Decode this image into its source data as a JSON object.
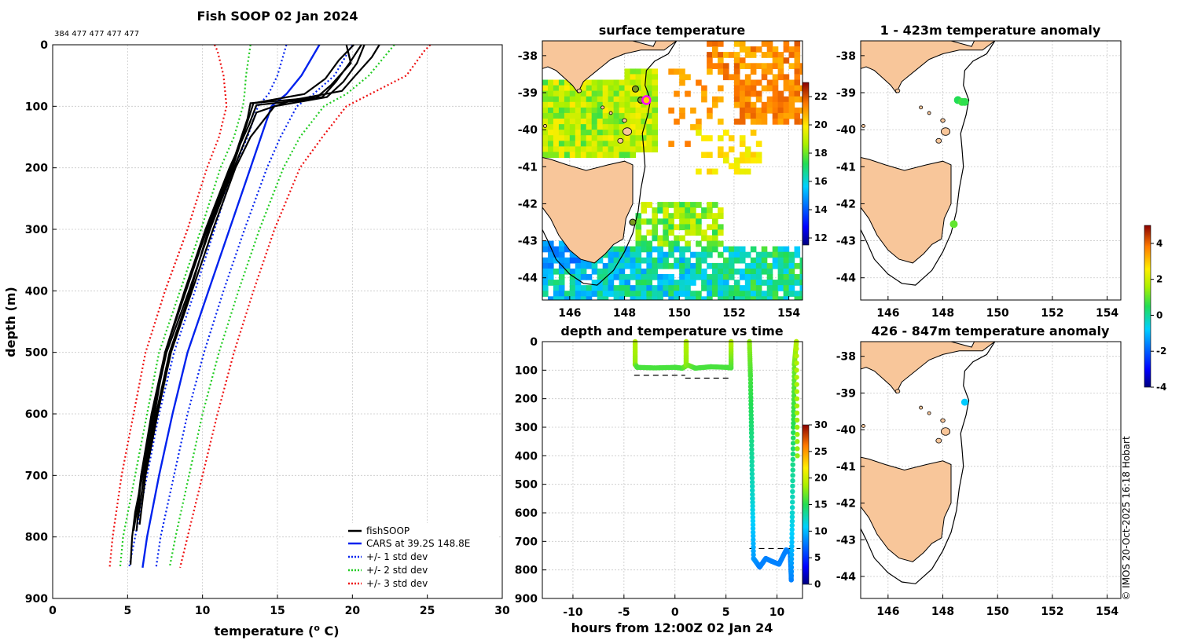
{
  "figure": {
    "main_title": "Fish SOOP 02 Jan 2024",
    "profile_counts": "384 477 477 477 477",
    "watermark": "© IMOS 20-Oct-2025 16:18 Hobart",
    "colors": {
      "land": "#f8c69a",
      "fishsoop": "#000000",
      "cars": "#0022ee",
      "sd1": "#0022ee",
      "sd2": "#22cc22",
      "sd3": "#ee1111"
    }
  },
  "chart_data": [
    {
      "id": "profile",
      "type": "line",
      "title": "Fish SOOP 02 Jan 2024",
      "xlabel": "temperature (° C)",
      "ylabel": "depth (m)",
      "xlim": [
        0,
        30
      ],
      "ylim": [
        900,
        0
      ],
      "xticks": [
        0,
        5,
        10,
        15,
        20,
        25,
        30
      ],
      "yticks": [
        0,
        100,
        200,
        300,
        400,
        500,
        600,
        700,
        800,
        900
      ],
      "grid": true,
      "legend_position": "bottom-right",
      "legend": [
        "fishSOOP",
        "CARS at 39.2S 148.8E",
        "+/- 1 std dev",
        "+/- 2 std dev",
        "+/- 3 std dev"
      ],
      "cars": {
        "depth": [
          0,
          50,
          80,
          100,
          150,
          200,
          300,
          400,
          500,
          600,
          700,
          800,
          850
        ],
        "temp": [
          17.8,
          16.6,
          15.6,
          14.6,
          13.9,
          13.2,
          11.8,
          10.4,
          9.0,
          8.0,
          7.1,
          6.3,
          6.0
        ]
      },
      "sd1": {
        "depth": [
          0,
          50,
          80,
          100,
          150,
          200,
          300,
          400,
          500,
          600,
          700,
          800,
          850
        ],
        "minus": [
          15.6,
          15.0,
          14.4,
          13.7,
          13.0,
          12.1,
          10.8,
          9.5,
          8.1,
          7.1,
          6.3,
          5.5,
          5.1
        ],
        "plus": [
          20.0,
          18.8,
          17.4,
          16.3,
          15.2,
          14.3,
          12.8,
          11.4,
          10.1,
          9.0,
          8.1,
          7.2,
          6.9
        ]
      },
      "sd2": {
        "depth": [
          0,
          50,
          80,
          100,
          150,
          200,
          300,
          400,
          500,
          600,
          700,
          800,
          850
        ],
        "minus": [
          13.2,
          12.9,
          12.8,
          12.7,
          12.1,
          11.2,
          9.9,
          8.5,
          7.1,
          6.3,
          5.5,
          4.7,
          4.5
        ],
        "plus": [
          22.8,
          21.1,
          19.6,
          18.1,
          16.5,
          15.4,
          13.8,
          12.4,
          11.1,
          10.0,
          9.1,
          8.2,
          7.8
        ]
      },
      "sd3": {
        "depth": [
          0,
          10,
          50,
          100,
          150,
          200,
          300,
          400,
          500,
          600,
          700,
          800,
          850
        ],
        "minus": [
          10.8,
          11.0,
          11.4,
          11.6,
          11.1,
          10.3,
          9.0,
          7.5,
          6.2,
          5.4,
          4.6,
          4.0,
          3.8
        ],
        "plus": [
          25.2,
          24.8,
          23.6,
          19.6,
          18.0,
          16.5,
          14.8,
          13.4,
          12.1,
          11.0,
          10.0,
          9.0,
          8.5
        ]
      },
      "fishsoop": [
        {
          "depth": [
            0,
            30,
            60,
            85,
            95,
            120,
            200,
            300,
            400,
            500,
            600,
            700,
            760,
            800,
            845
          ],
          "temp": [
            20.6,
            19.8,
            18.9,
            18.0,
            13.2,
            13.0,
            11.9,
            10.3,
            8.9,
            7.5,
            6.8,
            6.0,
            5.5,
            5.3,
            5.2
          ]
        },
        {
          "depth": [
            0,
            20,
            50,
            75,
            90,
            110,
            200,
            300,
            400,
            500,
            600,
            700,
            760,
            790
          ],
          "temp": [
            21.8,
            21.3,
            20.2,
            19.3,
            16.0,
            13.6,
            12.1,
            10.5,
            9.1,
            7.6,
            6.7,
            5.9,
            5.6,
            5.4
          ]
        },
        {
          "depth": [
            0,
            25,
            55,
            80,
            95,
            140,
            200,
            300,
            400,
            500,
            600,
            700,
            770
          ],
          "temp": [
            20.1,
            19.1,
            18.2,
            16.8,
            13.4,
            12.8,
            12.0,
            10.4,
            9.2,
            7.8,
            6.9,
            6.1,
            5.7
          ]
        },
        {
          "depth": [
            0,
            30,
            60,
            85,
            100,
            150,
            200,
            300,
            400,
            500,
            600,
            700,
            780
          ],
          "temp": [
            20.8,
            20.3,
            19.4,
            18.3,
            14.8,
            13.2,
            12.2,
            10.7,
            9.3,
            7.9,
            7.0,
            6.2,
            5.8
          ]
        },
        {
          "depth": [
            0,
            30,
            65,
            88,
            98,
            130,
            200,
            300,
            400,
            500,
            600,
            700,
            790
          ],
          "temp": [
            19.6,
            19.9,
            18.6,
            17.5,
            13.6,
            13.1,
            11.8,
            10.2,
            8.8,
            7.5,
            6.6,
            5.9,
            5.6
          ]
        }
      ]
    },
    {
      "id": "surface",
      "type": "heatmap",
      "title": "surface temperature",
      "xlim": [
        145,
        154.5
      ],
      "ylim": [
        -44.6,
        -37.6
      ],
      "xticks": [
        146,
        148,
        150,
        152,
        154
      ],
      "yticks": [
        -38,
        -39,
        -40,
        -41,
        -42,
        -43,
        -44
      ],
      "colorbar": {
        "min": 11.5,
        "max": 23,
        "ticks": [
          12,
          14,
          16,
          18,
          20,
          22
        ]
      },
      "markers": [
        {
          "lon": 148.4,
          "lat": -38.9
        },
        {
          "lon": 148.6,
          "lat": -39.2
        },
        {
          "lon": 148.3,
          "lat": -42.5
        }
      ],
      "current_position": {
        "lon": 148.8,
        "lat": -39.2
      }
    },
    {
      "id": "anomaly_shallow",
      "type": "scatter",
      "title": "1 - 423m temperature anomaly",
      "xlim": [
        145,
        154.5
      ],
      "ylim": [
        -44.6,
        -37.6
      ],
      "xticks": [
        146,
        148,
        150,
        152,
        154
      ],
      "yticks": [
        -38,
        -39,
        -40,
        -41,
        -42,
        -43,
        -44
      ],
      "points": [
        {
          "lon": 148.55,
          "lat": -39.2,
          "anomaly": 0.5
        },
        {
          "lon": 148.7,
          "lat": -39.25,
          "anomaly": 0.7
        },
        {
          "lon": 148.8,
          "lat": -39.25,
          "anomaly": 0.6
        },
        {
          "lon": 148.4,
          "lat": -42.55,
          "anomaly": 1.0
        }
      ]
    },
    {
      "id": "anomaly_deep",
      "type": "scatter",
      "title": "426 - 847m temperature anomaly",
      "xlim": [
        145,
        154.5
      ],
      "ylim": [
        -44.6,
        -37.6
      ],
      "xticks": [
        146,
        148,
        150,
        152,
        154
      ],
      "yticks": [
        -38,
        -39,
        -40,
        -41,
        -42,
        -43,
        -44
      ],
      "points": [
        {
          "lon": 148.8,
          "lat": -39.25,
          "anomaly": -0.8
        }
      ],
      "colorbar": {
        "min": -4,
        "max": 5,
        "ticks": [
          -4,
          -2,
          0,
          2,
          4
        ]
      }
    },
    {
      "id": "timeseries",
      "type": "scatter",
      "title": "depth and temperature vs time",
      "xlabel": "hours from 12:00Z 02 Jan 24",
      "xlim": [
        -13,
        12.5
      ],
      "ylim": [
        900,
        0
      ],
      "xticks": [
        -10,
        -5,
        0,
        5,
        10
      ],
      "yticks": [
        0,
        100,
        200,
        300,
        400,
        500,
        600,
        700,
        800,
        900
      ],
      "colorbar": {
        "min": 0,
        "max": 30,
        "ticks": [
          0,
          5,
          10,
          15,
          20,
          25,
          30
        ]
      },
      "segments": [
        {
          "t": [
            -3.9,
            -3.9,
            -3.7,
            -2.0,
            0.0,
            0.7,
            1.1,
            1.1
          ],
          "depth": [
            0,
            80,
            90,
            92,
            90,
            93,
            85,
            0
          ],
          "temp": [
            19,
            18,
            16,
            16,
            16,
            16,
            17,
            19
          ]
        },
        {
          "t": [
            1.1,
            1.1,
            2.0,
            3.5,
            5.0,
            5.5,
            5.5
          ],
          "depth": [
            0,
            80,
            93,
            88,
            90,
            92,
            0
          ],
          "temp": [
            19,
            18,
            16,
            16,
            16,
            16,
            19
          ]
        },
        {
          "t": [
            7.3,
            7.4,
            7.5,
            7.6,
            7.7
          ],
          "depth": [
            0,
            120,
            320,
            550,
            760
          ],
          "temp": [
            18,
            16,
            14,
            12,
            9
          ]
        },
        {
          "t": [
            7.7,
            8.3,
            8.9,
            9.5,
            10.2,
            10.9,
            11.3,
            11.4
          ],
          "depth": [
            760,
            790,
            760,
            770,
            780,
            730,
            740,
            835
          ],
          "temp": [
            9,
            8,
            8,
            8,
            8,
            8,
            8,
            8
          ]
        },
        {
          "t": [
            11.4,
            11.5,
            11.6,
            11.7,
            11.9,
            12.0
          ],
          "depth": [
            835,
            600,
            300,
            80,
            0,
            400
          ],
          "temp": [
            8,
            12,
            15,
            17,
            19,
            18
          ]
        }
      ],
      "dashed_lines": [
        {
          "t": [
            -4.0,
            1.0
          ],
          "depth": 118
        },
        {
          "t": [
            1.0,
            5.5
          ],
          "depth": 128
        },
        {
          "t": [
            7.3,
            12.3
          ],
          "depth": 725
        }
      ]
    }
  ]
}
